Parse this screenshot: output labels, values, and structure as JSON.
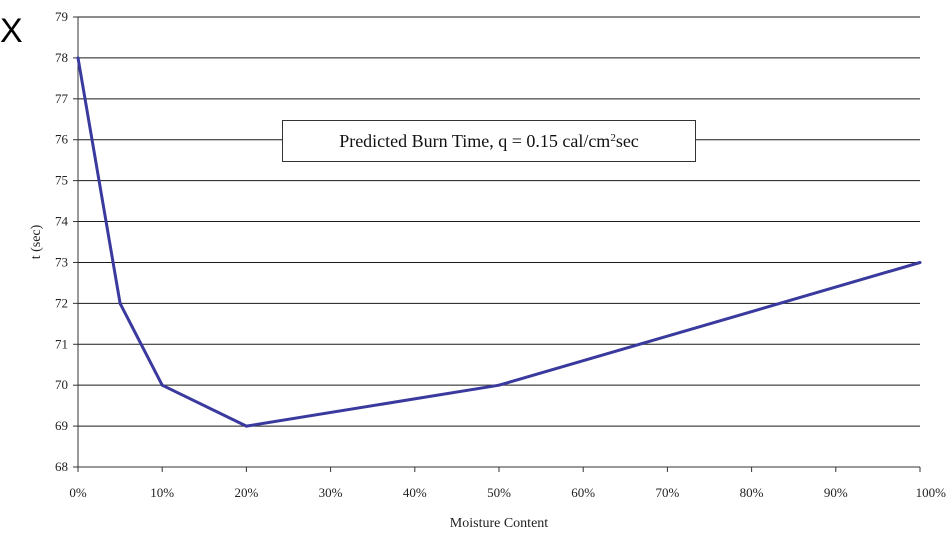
{
  "corner_mark": "X",
  "annotation": {
    "prefix": "Predicted Burn Time, q = 0.15 cal/cm",
    "superscript": "2",
    "suffix": " sec"
  },
  "colors": {
    "line": "#3a3a9e",
    "grid": "#1a1a1a",
    "axis": "#333333"
  },
  "chart_data": {
    "type": "line",
    "title": "",
    "xlabel": "Moisture Content",
    "ylabel": "t (sec)",
    "xlim": [
      0,
      100
    ],
    "ylim": [
      68,
      79
    ],
    "x_tick_labels": [
      "0%",
      "10%",
      "20%",
      "30%",
      "40%",
      "50%",
      "60%",
      "70%",
      "80%",
      "90%",
      "100%"
    ],
    "y_tick_labels": [
      "68",
      "69",
      "70",
      "71",
      "72",
      "73",
      "74",
      "75",
      "76",
      "77",
      "78",
      "79"
    ],
    "grid": "horizontal",
    "series": [
      {
        "x": [
          0,
          5,
          10,
          20,
          50,
          100
        ],
        "y": [
          78,
          72,
          70,
          69,
          70,
          73
        ]
      }
    ]
  }
}
